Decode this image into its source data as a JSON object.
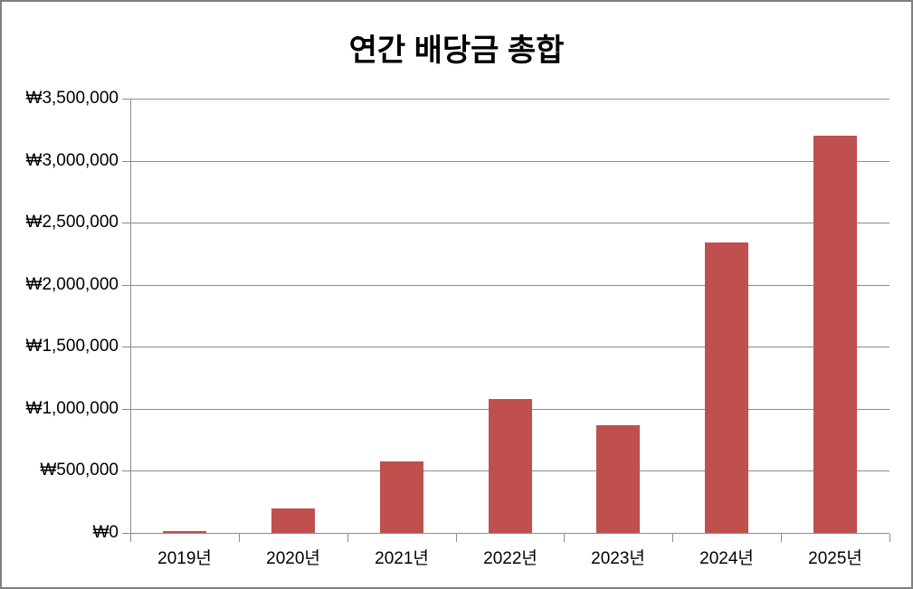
{
  "chart_data": {
    "type": "bar",
    "title": "연간 배당금 총합",
    "categories": [
      "2019년",
      "2020년",
      "2021년",
      "2022년",
      "2023년",
      "2024년",
      "2025년"
    ],
    "values": [
      15000,
      200000,
      575000,
      1080000,
      870000,
      2340000,
      3200000
    ],
    "xlabel": "",
    "ylabel": "",
    "ylim": [
      0,
      3500000
    ],
    "ytick_values": [
      0,
      500000,
      1000000,
      1500000,
      2000000,
      2500000,
      3000000,
      3500000
    ],
    "ytick_labels": [
      "₩0",
      "₩500,000",
      "₩1,000,000",
      "₩1,500,000",
      "₩2,000,000",
      "₩2,500,000",
      "₩3,000,000",
      "₩3,500,000"
    ],
    "grid": "horizontal gridlines on",
    "legend": "none",
    "bar_color": "#C0504D",
    "axis_color": "#8C8C8C",
    "border_color": "#808080",
    "title_color": "#000000",
    "label_color": "#000000"
  }
}
